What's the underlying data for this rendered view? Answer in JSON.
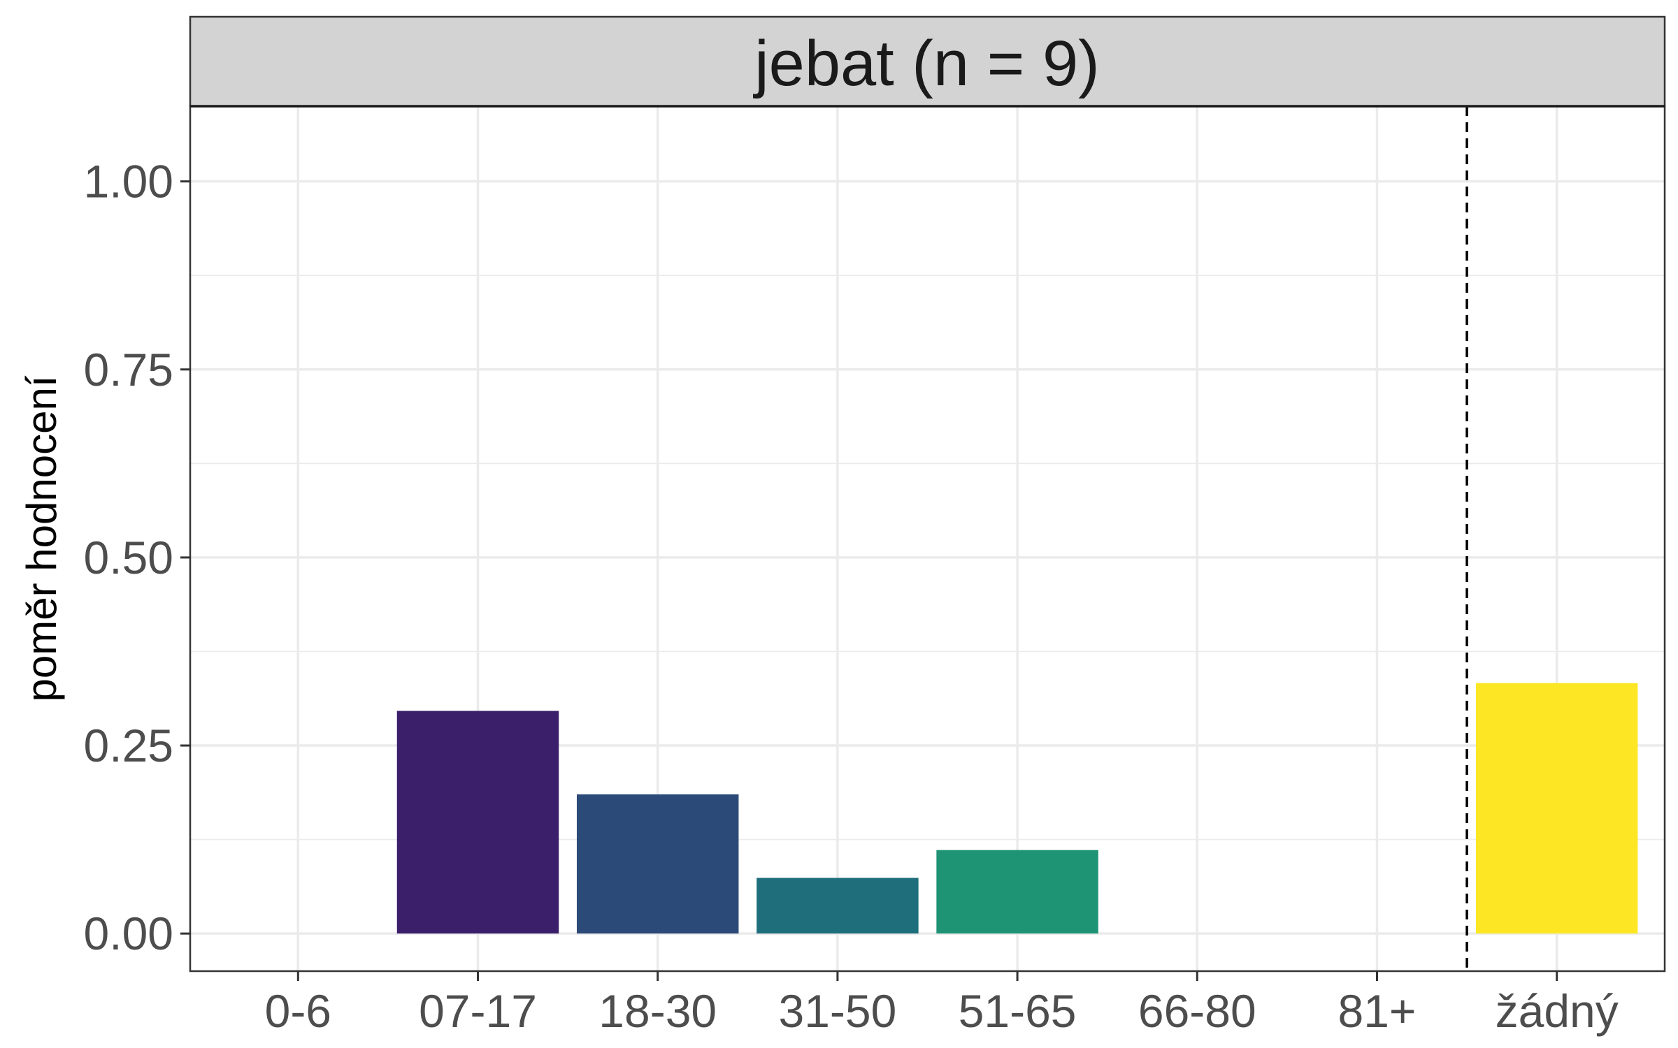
{
  "chart_data": {
    "type": "bar",
    "facet_title": "jebat (n = 9)",
    "ylabel": "poměr hodnocení",
    "xlabel": "",
    "categories": [
      "0-6",
      "07-17",
      "18-30",
      "31-50",
      "51-65",
      "66-80",
      "81+",
      "žádný"
    ],
    "values": [
      0,
      0.296,
      0.185,
      0.074,
      0.111,
      0,
      0,
      0.333
    ],
    "colors": [
      "#440154",
      "#3b1f6a",
      "#2c4a78",
      "#1f6e7b",
      "#1f9474",
      "#5ec962",
      "#addc30",
      "#fde725"
    ],
    "ylim": [
      -0.05,
      1.1
    ],
    "yticks": [
      0,
      0.25,
      0.5,
      0.75,
      1.0
    ],
    "ytick_labels": [
      "0.00",
      "0.25",
      "0.50",
      "0.75",
      "1.00"
    ],
    "reference_line": {
      "between": [
        "81+",
        "žádný"
      ],
      "style": "dashed",
      "color": "#000000"
    },
    "grid": true,
    "legend": "none"
  }
}
